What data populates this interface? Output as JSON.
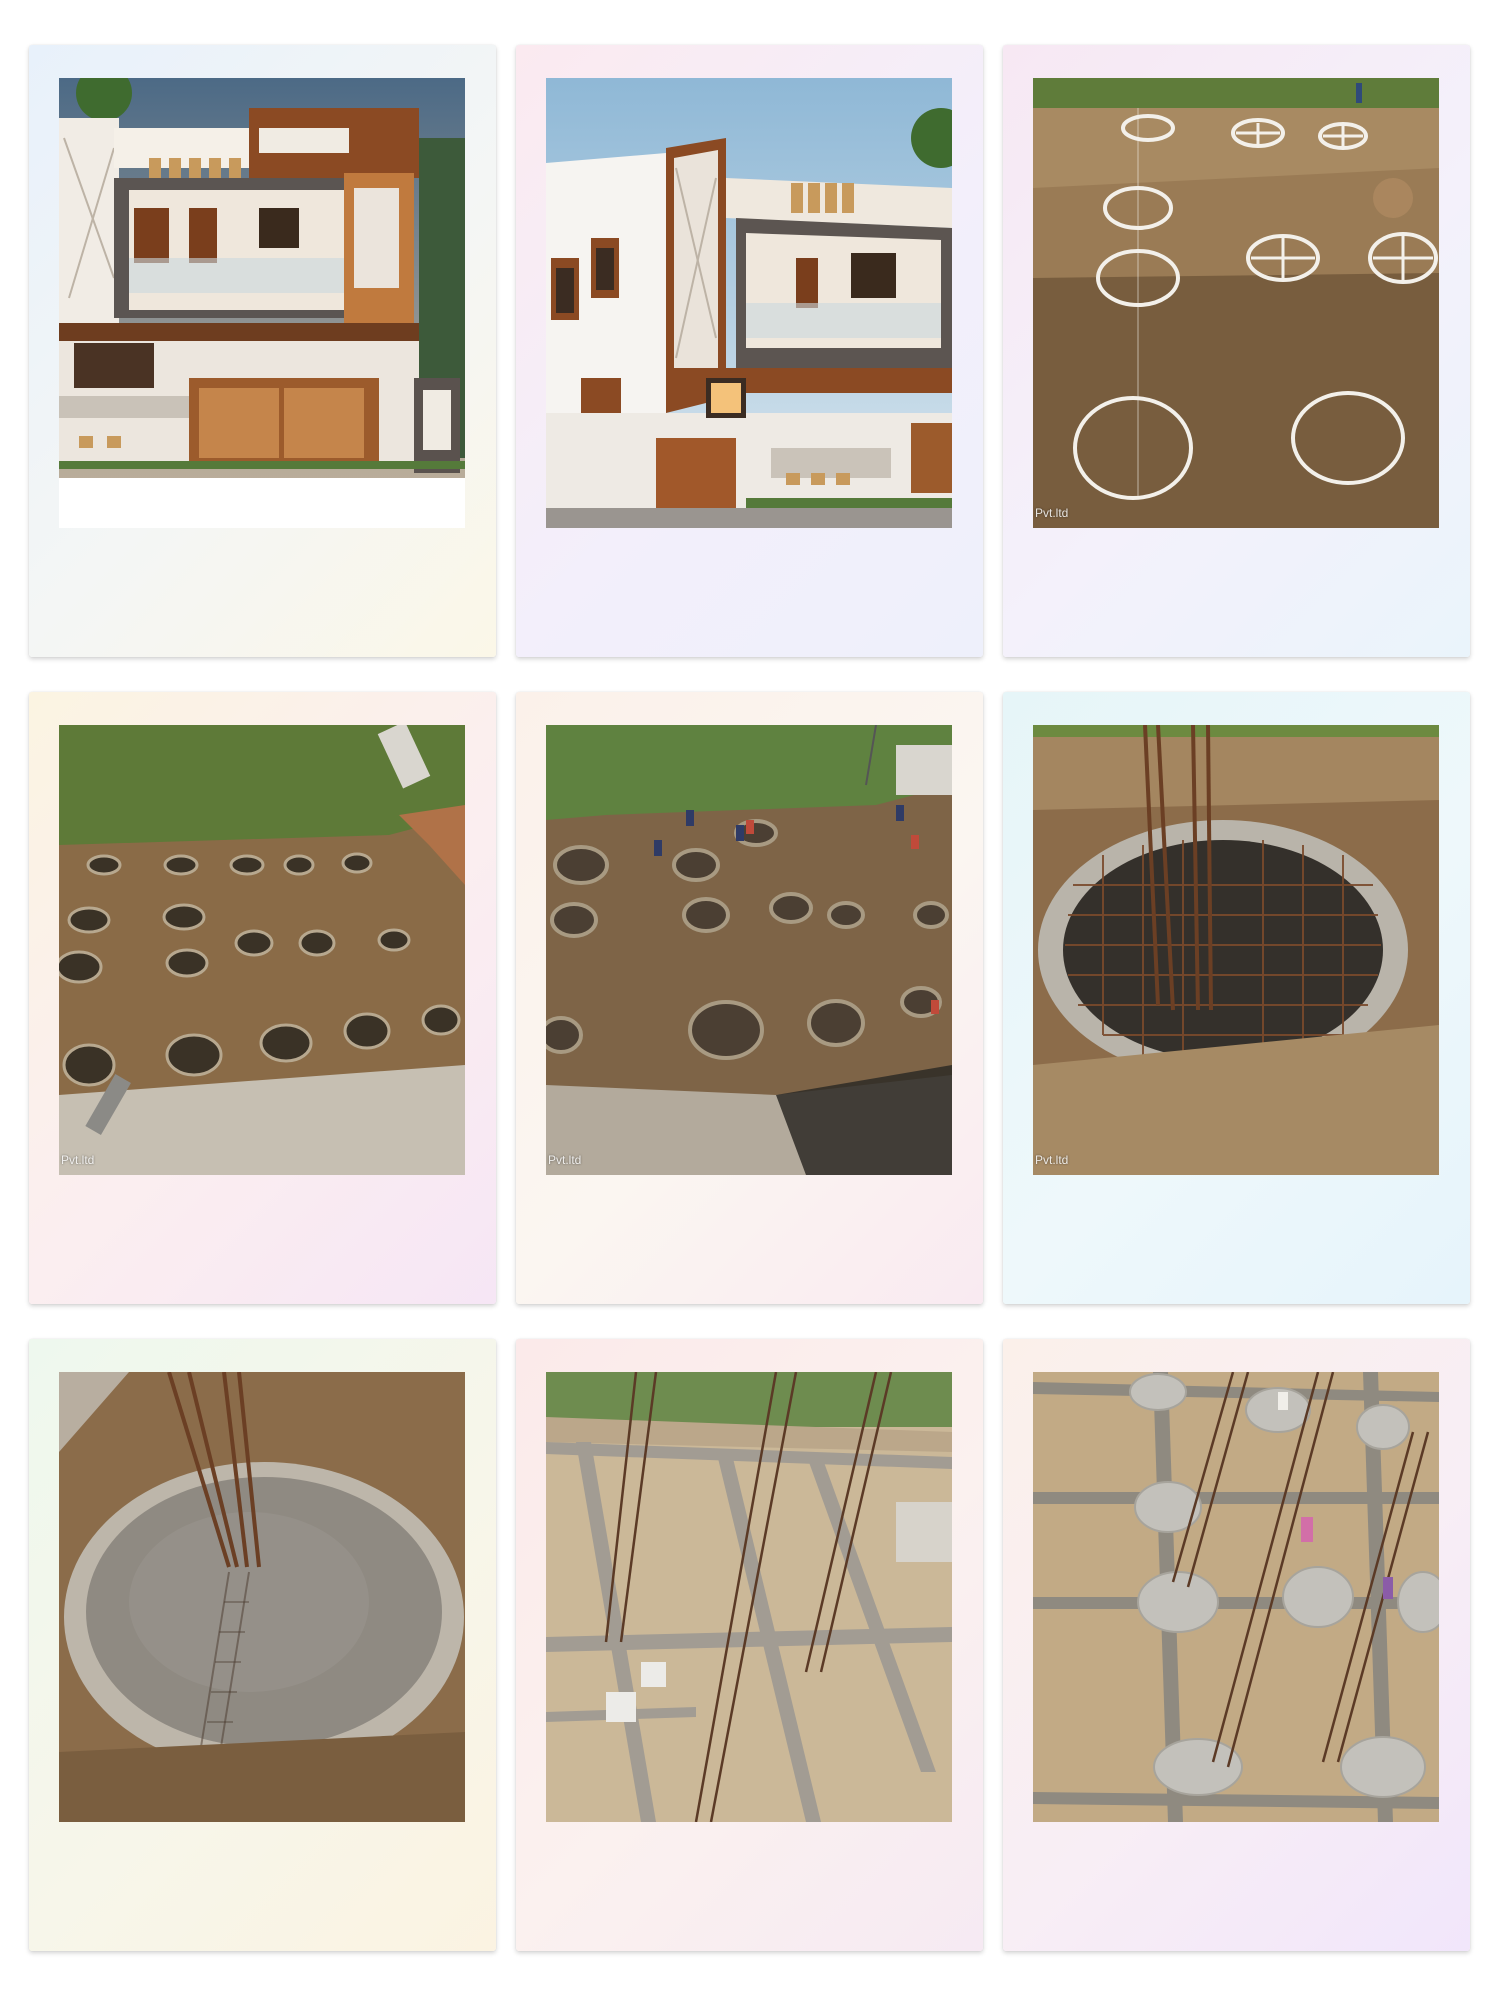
{
  "frames": [
    {
      "id": "house-render-front",
      "bg": "linear-gradient(135deg,#e8f1fb 0%,#f4f6f5 55%,#fbf7e8 100%)",
      "watermark": ""
    },
    {
      "id": "house-render-angle",
      "bg": "linear-gradient(135deg,#fbeaf0 0%,#f3effb 55%,#eef0fb 100%)",
      "watermark": ""
    },
    {
      "id": "site-markings",
      "bg": "linear-gradient(135deg,#f7e8f3 0%,#f4f1fb 55%,#eaf4fb 100%)",
      "watermark": "Pvt.ltd"
    },
    {
      "id": "excavated-pits",
      "bg": "linear-gradient(135deg,#fbf4e2 0%,#fbeef0 55%,#f6e6f5 100%)",
      "watermark": "Pvt.ltd"
    },
    {
      "id": "workers-in-pits",
      "bg": "linear-gradient(135deg,#fbf1ea 0%,#fbf6f1 55%,#f9eaf1 100%)",
      "watermark": "Pvt.ltd"
    },
    {
      "id": "rebar-footing-ring",
      "bg": "linear-gradient(135deg,#e6f5f8 0%,#eef8fb 55%,#e6f4fb 100%)",
      "watermark": "Pvt.ltd"
    },
    {
      "id": "concrete-footing",
      "bg": "linear-gradient(135deg,#eef8ee 0%,#f7f6ea 55%,#fbf3e2 100%)",
      "watermark": ""
    },
    {
      "id": "grade-beams",
      "bg": "linear-gradient(135deg,#fbeaea 0%,#fbf1ef 55%,#f6eaf3 100%)",
      "watermark": ""
    },
    {
      "id": "footing-columns-overview",
      "bg": "linear-gradient(135deg,#fbf0ea 0%,#f8eef5 55%,#f1e6fb 100%)",
      "watermark": ""
    }
  ]
}
